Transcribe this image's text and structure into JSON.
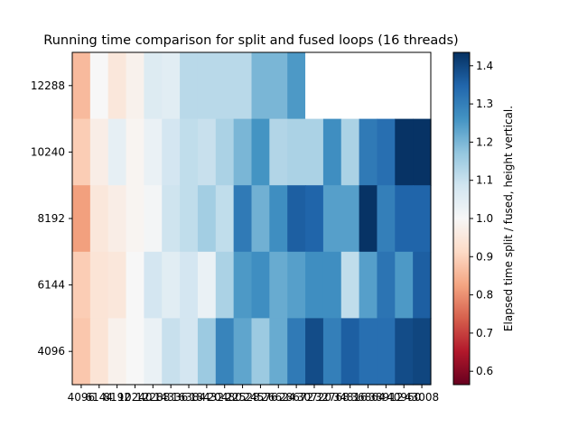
{
  "chart_data": {
    "type": "heatmap",
    "title": "Running time comparison for split and fused loops (16 threads)",
    "xlabel": "",
    "ylabel": "",
    "x_tick_labels": [
      "4096",
      "6144",
      "8192",
      "10240",
      "12288",
      "14336",
      "16384",
      "18432",
      "20480",
      "22528",
      "24576",
      "26624",
      "28672",
      "30720",
      "32768",
      "34816",
      "36864",
      "38912",
      "40960",
      "43008"
    ],
    "y_tick_labels": [
      "12288",
      "10240",
      "8192",
      "6144",
      "4096"
    ],
    "colorbar": {
      "label": "Elapsed time split / fused, height vertical.",
      "min": 0.565,
      "max": 1.435,
      "colormap": "RdBu",
      "ticks": [
        "0.6",
        "0.7",
        "0.8",
        "0.9",
        "1.0",
        "1.1",
        "1.2",
        "1.3",
        "1.4"
      ],
      "tick_values": [
        0.6,
        0.7,
        0.8,
        0.9,
        1.0,
        1.1,
        1.2,
        1.3,
        1.4
      ]
    },
    "rows": [
      [
        0.86,
        1.0,
        0.95,
        0.98,
        1.06,
        1.05,
        1.12,
        1.12,
        1.12,
        1.12,
        1.2,
        1.2,
        1.25,
        null,
        null,
        null,
        null,
        null,
        null,
        null
      ],
      [
        0.89,
        0.97,
        1.04,
        0.99,
        1.03,
        1.08,
        1.11,
        1.1,
        1.14,
        1.2,
        1.26,
        1.13,
        1.14,
        1.14,
        1.27,
        1.14,
        1.31,
        1.33,
        1.43,
        1.43
      ],
      [
        0.82,
        0.95,
        0.97,
        0.99,
        1.01,
        1.09,
        1.11,
        1.15,
        1.11,
        1.31,
        1.21,
        1.27,
        1.36,
        1.35,
        1.24,
        1.24,
        1.43,
        1.3,
        1.35,
        1.35
      ],
      [
        0.89,
        0.94,
        0.95,
        1.0,
        1.08,
        1.05,
        1.08,
        1.03,
        1.14,
        1.25,
        1.27,
        1.22,
        1.24,
        1.27,
        1.27,
        1.11,
        1.24,
        1.32,
        1.25,
        1.36
      ],
      [
        0.88,
        0.94,
        0.98,
        1.0,
        1.03,
        1.1,
        1.08,
        1.16,
        1.29,
        1.23,
        1.16,
        1.22,
        1.31,
        1.39,
        1.3,
        1.36,
        1.33,
        1.33,
        1.39,
        1.4
      ]
    ]
  }
}
